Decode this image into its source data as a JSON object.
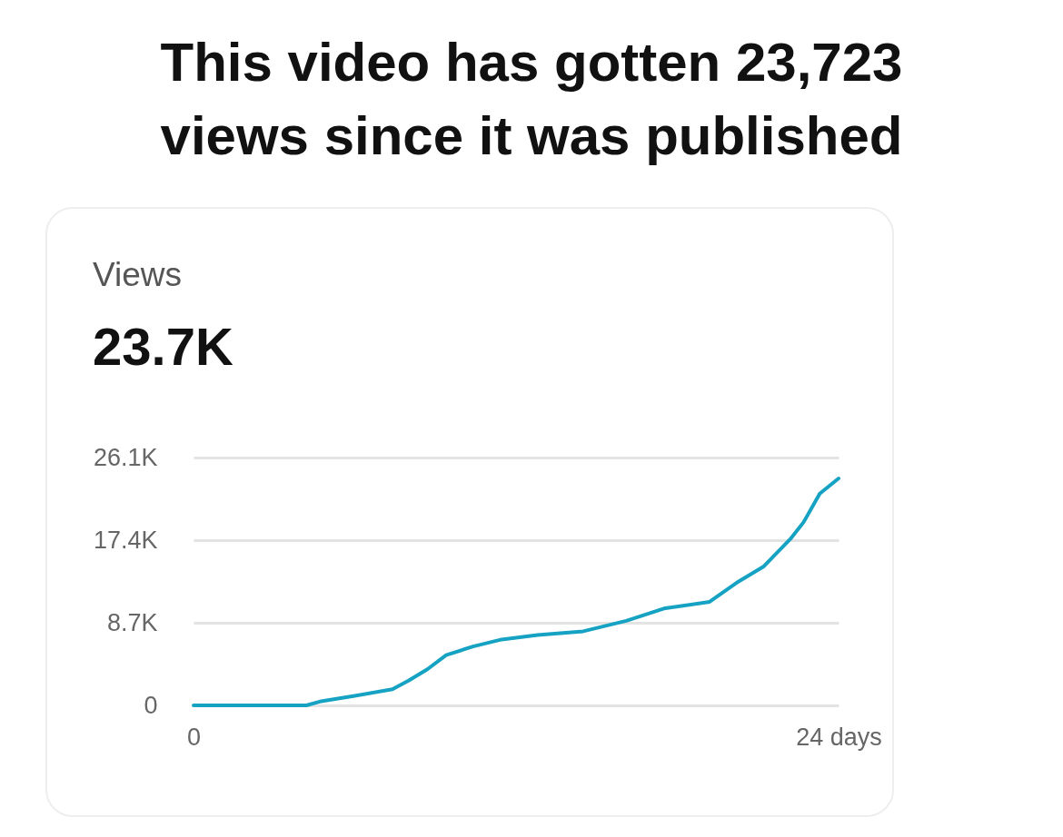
{
  "chart_data": {
    "type": "line",
    "title": "This video has gotten 23,723 views since it was published",
    "subtitle": "Views",
    "annotations": [
      "23.7K"
    ],
    "x": [
      0,
      4.2,
      4.7,
      6.0,
      7.4,
      8.0,
      8.7,
      9.4,
      10.4,
      11.4,
      12.8,
      14.5,
      16.1,
      17.5,
      19.2,
      20.2,
      21.2,
      22.2,
      22.7,
      23.3,
      24
    ],
    "series": [
      {
        "color": "#16a2c3",
        "values": [
          0,
          0,
          400,
          1000,
          1700,
          2600,
          3800,
          5300,
          6200,
          6900,
          7400,
          7800,
          8900,
          10200,
          10900,
          12900,
          14600,
          17500,
          19300,
          22300,
          23900
        ]
      }
    ],
    "xlim": [
      0,
      24
    ],
    "xticks": [
      {
        "value": 0,
        "label": "0"
      },
      {
        "value": 24,
        "label": "24 days"
      }
    ],
    "ylim": [
      0,
      26100
    ],
    "yticks": [
      {
        "value": 0,
        "label": "0"
      },
      {
        "value": 8700,
        "label": "8.7K"
      },
      {
        "value": 17400,
        "label": "17.4K"
      },
      {
        "value": 26100,
        "label": "26.1K"
      }
    ],
    "grid": "y",
    "marker": "none",
    "line_style": "solid"
  }
}
